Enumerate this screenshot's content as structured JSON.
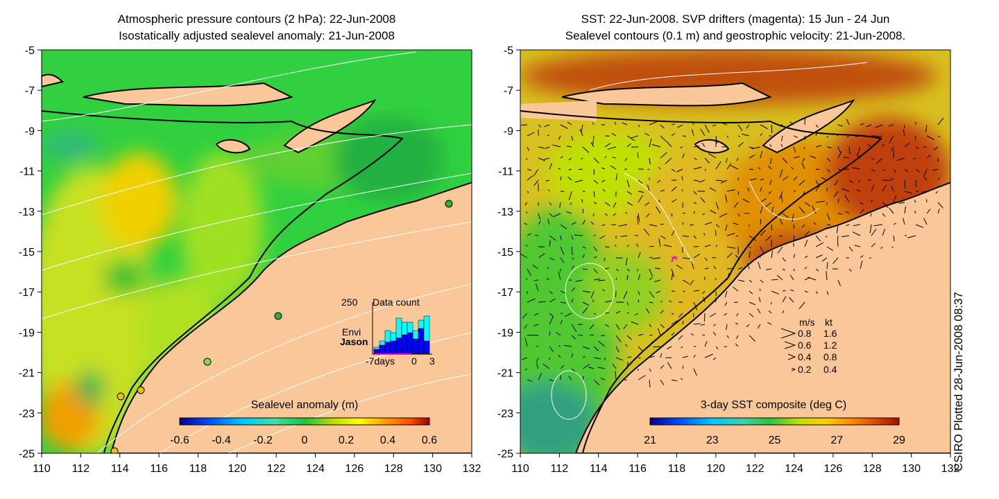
{
  "left_panel": {
    "title_line1": "Atmospheric pressure contours (2 hPa): 22-Jun-2008",
    "title_line2": "Isostatically adjusted sealevel anomaly: 21-Jun-2008",
    "colorbar_label": "Sealevel anomaly (m)",
    "colorbar_ticks": [
      "-0.6",
      "-0.4",
      "-0.2",
      "0",
      "0.2",
      "0.4",
      "0.6"
    ],
    "colorbar_colors": [
      "#00008f",
      "#0050ff",
      "#00c8ff",
      "#40e0a0",
      "#20c040",
      "#c0e000",
      "#ffff00",
      "#ffa000",
      "#ff5000",
      "#a00000"
    ],
    "inset": {
      "ymax_label": "250",
      "title": "Data count",
      "series1_label": "Envi",
      "series2_label": "Jason",
      "x_labels": [
        "-7days",
        "0",
        "3"
      ],
      "envi_color": "#00ffff",
      "jason_color": "#0000ff",
      "envi_values": [
        30,
        60,
        110,
        100,
        170,
        150,
        150,
        110,
        160,
        180
      ],
      "jason_values": [
        20,
        40,
        55,
        60,
        75,
        90,
        100,
        70,
        120,
        60
      ]
    }
  },
  "right_panel": {
    "title_line1": "SST: 22-Jun-2008. SVP drifters (magenta): 15 Jun - 24 Jun",
    "title_line2": "Sealevel contours (0.1 m) and geostrophic velocity: 21-Jun-2008.",
    "colorbar_label": "3-day SST composite (deg C)",
    "colorbar_ticks": [
      "21",
      "23",
      "25",
      "27",
      "29"
    ],
    "colorbar_colors": [
      "#00008f",
      "#0050ff",
      "#00c8ff",
      "#40d0a0",
      "#30c040",
      "#c0e000",
      "#ffd000",
      "#ff9000",
      "#e05000",
      "#a01000"
    ],
    "velocity_legend": {
      "header_ms": "m/s",
      "header_kt": "kt",
      "rows": [
        {
          "ms": "0.8",
          "kt": "1.6"
        },
        {
          "ms": "0.6",
          "kt": "1.2"
        },
        {
          "ms": "0.4",
          "kt": "0.8"
        },
        {
          "ms": "0.2",
          "kt": "0.4"
        }
      ]
    }
  },
  "axes": {
    "lon_ticks": [
      "110",
      "112",
      "114",
      "116",
      "118",
      "120",
      "122",
      "124",
      "126",
      "128",
      "130",
      "132"
    ],
    "lat_ticks": [
      "-5",
      "-7",
      "-9",
      "-11",
      "-13",
      "-15",
      "-17",
      "-19",
      "-21",
      "-23",
      "-25"
    ]
  },
  "colors": {
    "land": "#fac898",
    "coast": "#000000",
    "contour": "#ffffff",
    "drifter": "#ff00ff"
  },
  "credit": "CSIRO Plotted 28-Jun-2008 08:37"
}
